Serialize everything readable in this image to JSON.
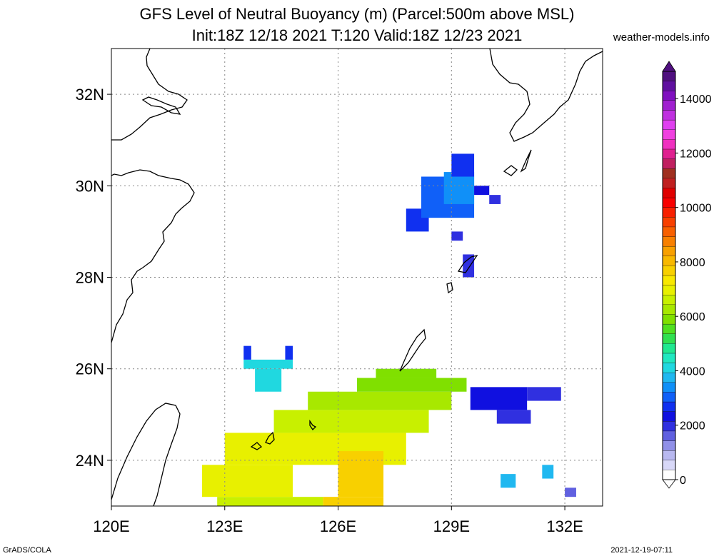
{
  "header": {
    "title_line1": "GFS Level of Neutral Buoyancy (m) (Parcel:500m above MSL)",
    "title_line2": "Init:18Z 12/18 2021 T:120 Valid:18Z 12/23 2021",
    "site": "weather-models.info"
  },
  "footer": {
    "left": "GrADS/COLA",
    "right": "2021-12-19-07:11"
  },
  "chart_data": {
    "type": "heatmap",
    "title": "GFS Level of Neutral Buoyancy (m) (Parcel:500m above MSL)",
    "subtitle": "Init:18Z 12/18 2021 T:120 Valid:18Z 12/23 2021",
    "x_axis": {
      "ticks": [
        "120E",
        "123E",
        "126E",
        "129E",
        "132E"
      ],
      "values": [
        120,
        123,
        126,
        129,
        132
      ],
      "range": [
        120,
        133
      ]
    },
    "y_axis": {
      "ticks": [
        "24N",
        "26N",
        "28N",
        "30N",
        "32N"
      ],
      "values": [
        24,
        26,
        28,
        30,
        32
      ],
      "range": [
        23,
        33
      ]
    },
    "grid": true,
    "colorbar": {
      "ticks": [
        "0",
        "2000",
        "4000",
        "6000",
        "8000",
        "10000",
        "12000",
        "14000"
      ],
      "tick_values": [
        0,
        2000,
        4000,
        6000,
        8000,
        10000,
        12000,
        14000
      ],
      "max": 15000,
      "colors": [
        "#ffffff",
        "#d8d8f8",
        "#b8b8f0",
        "#9090e8",
        "#6060e0",
        "#3030e0",
        "#1010e0",
        "#1030f0",
        "#1060f8",
        "#1090f8",
        "#20b8f0",
        "#20d8e0",
        "#20e8c0",
        "#20e890",
        "#30e050",
        "#50e020",
        "#80e000",
        "#a8e800",
        "#c8f000",
        "#e8f000",
        "#f8e800",
        "#f8d000",
        "#f8b800",
        "#f8a000",
        "#f88000",
        "#f86000",
        "#f84000",
        "#f82000",
        "#f80000",
        "#e00000",
        "#c02020",
        "#a03020",
        "#c02060",
        "#e02090",
        "#f030c0",
        "#f040e0",
        "#e040f0",
        "#c030e0",
        "#a020d0",
        "#8010c0",
        "#6010a0",
        "#501080"
      ]
    },
    "cells": [
      {
        "lon": 122.4,
        "lat": 23.2,
        "lon2": 124.8,
        "lat2": 23.9,
        "value": 6800
      },
      {
        "lon": 123.0,
        "lat": 23.9,
        "lon2": 127.8,
        "lat2": 24.6,
        "value": 6900
      },
      {
        "lon": 124.3,
        "lat": 24.6,
        "lon2": 128.4,
        "lat2": 25.1,
        "value": 6500
      },
      {
        "lon": 125.2,
        "lat": 25.1,
        "lon2": 129.0,
        "lat2": 25.5,
        "value": 6200
      },
      {
        "lon": 126.5,
        "lat": 25.5,
        "lon2": 129.4,
        "lat2": 25.8,
        "value": 5900
      },
      {
        "lon": 127.0,
        "lat": 25.8,
        "lon2": 128.6,
        "lat2": 26.0,
        "value": 5800
      },
      {
        "lon": 122.8,
        "lat": 22.9,
        "lon2": 125.6,
        "lat2": 23.2,
        "value": 6600
      },
      {
        "lon": 125.6,
        "lat": 22.9,
        "lon2": 127.2,
        "lat2": 23.2,
        "value": 7500
      },
      {
        "lon": 126.0,
        "lat": 23.2,
        "lon2": 127.2,
        "lat2": 24.2,
        "value": 7800
      },
      {
        "lon": 129.5,
        "lat": 25.1,
        "lon2": 131.0,
        "lat2": 25.6,
        "value": 2200
      },
      {
        "lon": 130.2,
        "lat": 24.8,
        "lon2": 131.1,
        "lat2": 25.1,
        "value": 2000
      },
      {
        "lon": 131.0,
        "lat": 25.3,
        "lon2": 131.9,
        "lat2": 25.6,
        "value": 1800
      },
      {
        "lon": 130.3,
        "lat": 23.4,
        "lon2": 130.7,
        "lat2": 23.7,
        "value": 3800
      },
      {
        "lon": 131.4,
        "lat": 23.6,
        "lon2": 131.7,
        "lat2": 23.9,
        "value": 3900
      },
      {
        "lon": 132.0,
        "lat": 23.2,
        "lon2": 132.3,
        "lat2": 23.4,
        "value": 1600
      },
      {
        "lon": 123.5,
        "lat": 26.0,
        "lon2": 124.8,
        "lat2": 26.2,
        "value": 4100
      },
      {
        "lon": 123.8,
        "lat": 25.5,
        "lon2": 124.5,
        "lat2": 26.0,
        "value": 4200
      },
      {
        "lon": 123.5,
        "lat": 26.2,
        "lon2": 123.7,
        "lat2": 26.5,
        "value": 2500
      },
      {
        "lon": 124.6,
        "lat": 26.2,
        "lon2": 124.8,
        "lat2": 26.5,
        "value": 2600
      },
      {
        "lon": 127.8,
        "lat": 29.0,
        "lon2": 128.4,
        "lat2": 29.5,
        "value": 2700
      },
      {
        "lon": 128.2,
        "lat": 29.3,
        "lon2": 129.6,
        "lat2": 30.2,
        "value": 2900
      },
      {
        "lon": 128.8,
        "lat": 29.6,
        "lon2": 129.6,
        "lat2": 30.3,
        "value": 3300
      },
      {
        "lon": 129.0,
        "lat": 30.2,
        "lon2": 129.6,
        "lat2": 30.7,
        "value": 2800
      },
      {
        "lon": 129.6,
        "lat": 29.8,
        "lon2": 130.0,
        "lat2": 30.0,
        "value": 2400
      },
      {
        "lon": 130.0,
        "lat": 29.6,
        "lon2": 130.3,
        "lat2": 29.8,
        "value": 1900
      },
      {
        "lon": 129.0,
        "lat": 28.8,
        "lon2": 129.3,
        "lat2": 29.0,
        "value": 2100
      },
      {
        "lon": 129.3,
        "lat": 28.0,
        "lon2": 129.6,
        "lat2": 28.5,
        "value": 2000
      }
    ]
  }
}
